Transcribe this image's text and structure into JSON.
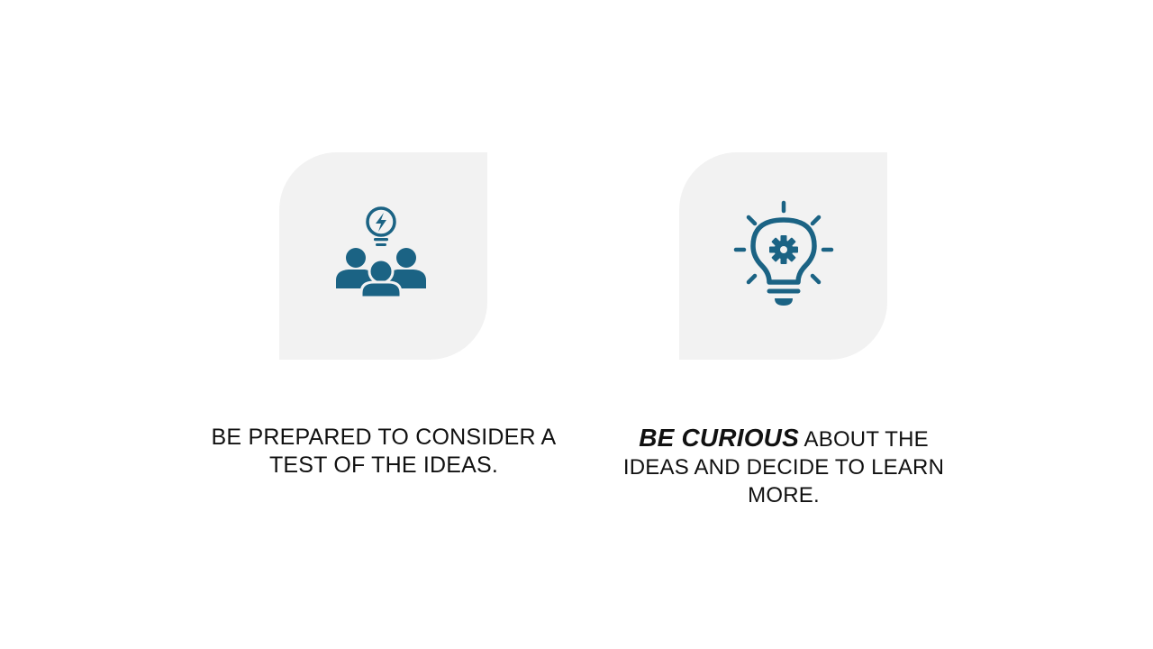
{
  "slide": {
    "accent_color": "#1b6384",
    "tile_color": "#f2f2f2",
    "cards": [
      {
        "icon": "team-idea-icon",
        "text": "BE PREPARED TO CONSIDER A TEST OF THE IDEAS."
      },
      {
        "icon": "lightbulb-gear-icon",
        "emphasis": "BE CURIOUS",
        "text": " ABOUT THE IDEAS AND DECIDE TO LEARN MORE."
      }
    ]
  }
}
